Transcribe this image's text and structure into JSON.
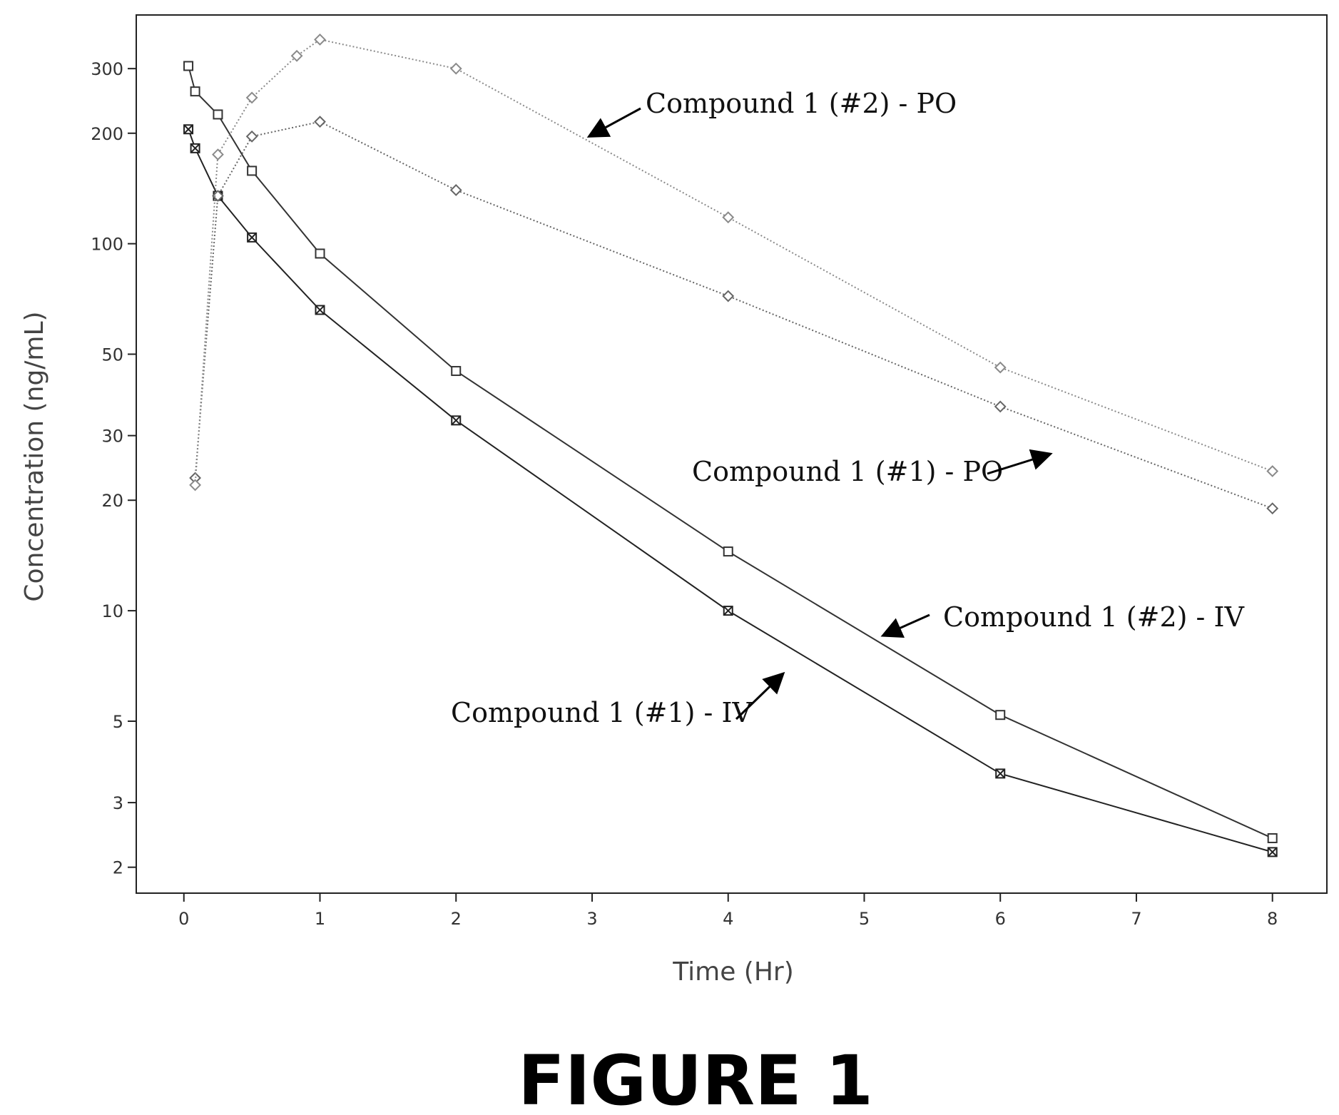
{
  "chart_data": {
    "type": "line",
    "title": "",
    "xlabel": "Time (Hr)",
    "ylabel": "Concentration (ng/mL)",
    "xlim": [
      -0.35,
      8.4
    ],
    "ylim": [
      1.7,
      420
    ],
    "yscale": "log",
    "grid": false,
    "x_ticks": [
      0,
      1,
      2,
      3,
      4,
      5,
      6,
      7,
      8
    ],
    "y_ticks": [
      2,
      3,
      5,
      10,
      20,
      30,
      50,
      100,
      200,
      300
    ],
    "series": [
      {
        "name": "Compound 1 (#1) - IV",
        "color": "#222222",
        "marker": "square-x",
        "line": "solid",
        "x": [
          0.033,
          0.083,
          0.25,
          0.5,
          1,
          2,
          4,
          6,
          8
        ],
        "y": [
          205,
          182,
          135,
          104,
          66,
          33,
          10,
          3.6,
          2.2
        ]
      },
      {
        "name": "Compound 1 (#2) - IV",
        "color": "#333333",
        "marker": "square",
        "line": "solid",
        "x": [
          0.033,
          0.083,
          0.25,
          0.5,
          1,
          2,
          4,
          6,
          8
        ],
        "y": [
          305,
          260,
          225,
          158,
          94,
          45,
          14.5,
          5.2,
          2.4
        ]
      },
      {
        "name": "Compound 1 (#1) - PO",
        "color": "#666666",
        "marker": "diamond",
        "line": "dotted",
        "x": [
          0.083,
          0.25,
          0.5,
          1,
          2,
          4,
          6,
          8
        ],
        "y": [
          23,
          135,
          196,
          215,
          140,
          72,
          36,
          19
        ]
      },
      {
        "name": "Compound 1 (#2) - PO",
        "color": "#8a8a8a",
        "marker": "diamond",
        "line": "dotted",
        "x": [
          0.083,
          0.25,
          0.5,
          0.83,
          1,
          2,
          4,
          6,
          8
        ],
        "y": [
          22,
          175,
          250,
          325,
          360,
          300,
          118,
          46,
          24
        ]
      }
    ],
    "annotations": [
      {
        "text": "Compound 1 (#2) - PO"
      },
      {
        "text": "Compound 1 (#1) - PO"
      },
      {
        "text": "Compound 1 (#2) - IV"
      },
      {
        "text": "Compound 1 (#1) - IV"
      }
    ]
  },
  "figure": {
    "caption": "FIGURE 1"
  }
}
